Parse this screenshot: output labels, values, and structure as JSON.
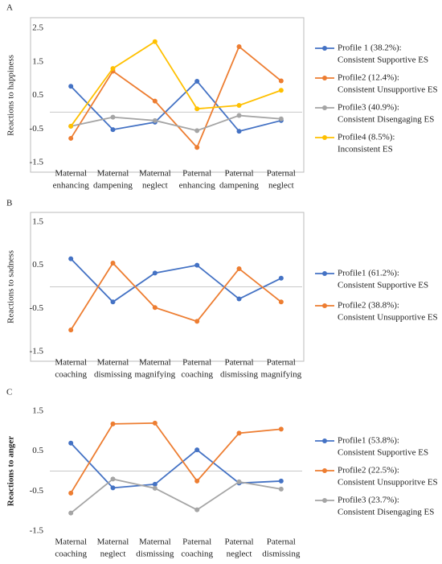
{
  "chart_data": [
    {
      "type": "line",
      "panel_label": "A",
      "y_label": "Reactions to happiness",
      "frame": true,
      "categories": [
        [
          "Maternal",
          "enhancing"
        ],
        [
          "Maternal",
          "dampening"
        ],
        [
          "Maternal",
          "neglect"
        ],
        [
          "Paternal",
          "enhancing"
        ],
        [
          "Paternal",
          "dampening"
        ],
        [
          "Paternal",
          "neglect"
        ]
      ],
      "ylim": [
        -1.5,
        2.5
      ],
      "yticks": [
        2.5,
        1.5,
        0.5,
        -0.5,
        -1.5
      ],
      "series": [
        {
          "name": [
            "Profile 1 (38.2%):",
            "Consistent Supportive ES"
          ],
          "color": "#4472c4",
          "values": [
            0.77,
            -0.52,
            -0.3,
            0.92,
            -0.57,
            -0.25
          ]
        },
        {
          "name": [
            "Profile2 (12.4%):",
            "Consistent Unsupportive ES"
          ],
          "color": "#ed7d31",
          "values": [
            -0.78,
            1.22,
            0.33,
            -1.05,
            1.95,
            0.93
          ]
        },
        {
          "name": [
            "Profile3 (40.9%):",
            "Consistent Disengaging ES"
          ],
          "color": "#a5a5a5",
          "values": [
            -0.42,
            -0.15,
            -0.25,
            -0.55,
            -0.1,
            -0.2
          ]
        },
        {
          "name": [
            "Profile4 (8.5%):",
            "Inconsistent ES"
          ],
          "color": "#ffc000",
          "values": [
            -0.42,
            1.3,
            2.1,
            0.1,
            0.2,
            0.65
          ]
        }
      ]
    },
    {
      "type": "line",
      "panel_label": "B",
      "y_label": "Reactions to sadness",
      "frame": true,
      "categories": [
        [
          "Maternal",
          "coaching"
        ],
        [
          "Maternal",
          "dismissing"
        ],
        [
          "Maternal",
          "magnifying"
        ],
        [
          "Paternal",
          "coaching"
        ],
        [
          "Paternal",
          "dismissing"
        ],
        [
          "Paternal",
          "magnifying"
        ]
      ],
      "ylim": [
        -1.5,
        1.5
      ],
      "yticks": [
        1.5,
        0.5,
        -0.5,
        -1.5
      ],
      "series": [
        {
          "name": [
            "Profile1 (61.2%):",
            "Consistent Supportive ES"
          ],
          "color": "#4472c4",
          "values": [
            0.65,
            -0.35,
            0.32,
            0.5,
            -0.28,
            0.2
          ]
        },
        {
          "name": [
            "Profile2 (38.8%):",
            "Consistent Unsupportive ES"
          ],
          "color": "#ed7d31",
          "values": [
            -1.0,
            0.55,
            -0.48,
            -0.8,
            0.42,
            -0.35
          ]
        }
      ]
    },
    {
      "type": "line",
      "panel_label": "C",
      "y_label": "Reactions to anger",
      "frame": false,
      "categories": [
        [
          "Maternal",
          "coaching"
        ],
        [
          "Maternal",
          "neglect"
        ],
        [
          "Maternal",
          "dismissing"
        ],
        [
          "Paternal",
          "coaching"
        ],
        [
          "Paternal",
          "neglect"
        ],
        [
          "Paternal",
          "dismissing"
        ]
      ],
      "ylim": [
        -1.5,
        1.5
      ],
      "yticks": [
        1.5,
        0.5,
        -0.5,
        -1.5
      ],
      "series": [
        {
          "name": [
            "Profile1 (53.8%):",
            "Consistent Supportive ES"
          ],
          "color": "#4472c4",
          "values": [
            0.7,
            -0.42,
            -0.33,
            0.53,
            -0.3,
            -0.25
          ]
        },
        {
          "name": [
            "Profile2 (22.5%):",
            "Consistent Unsupporitve ES"
          ],
          "color": "#ed7d31",
          "values": [
            -0.55,
            1.18,
            1.2,
            -0.25,
            0.95,
            1.05
          ]
        },
        {
          "name": [
            "Profile3 (23.7%):",
            "Consistent Disengaging ES"
          ],
          "color": "#a5a5a5",
          "values": [
            -1.05,
            -0.2,
            -0.43,
            -0.97,
            -0.27,
            -0.45
          ]
        }
      ]
    }
  ]
}
